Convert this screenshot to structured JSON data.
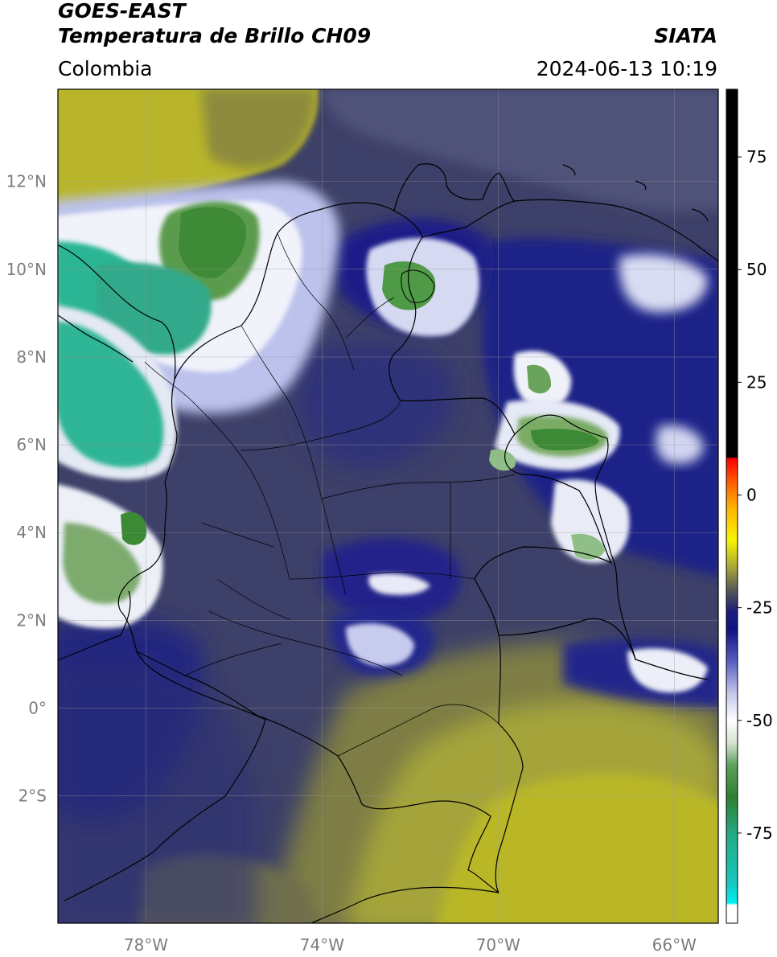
{
  "header": {
    "title_line1": "GOES-EAST",
    "title_line2": "Temperatura de Brillo CH09",
    "region": "Colombia",
    "brand": "SIATA",
    "timestamp": "2024-06-13 10:19"
  },
  "map": {
    "lon_range": [
      -80,
      -65
    ],
    "lat_range": [
      -4.9,
      14.1
    ],
    "lon_ticks": [
      {
        "value": -78,
        "label": "78°W"
      },
      {
        "value": -74,
        "label": "74°W"
      },
      {
        "value": -70,
        "label": "70°W"
      },
      {
        "value": -66,
        "label": "66°W"
      }
    ],
    "lat_ticks": [
      {
        "value": 12,
        "label": "12°N"
      },
      {
        "value": 10,
        "label": "10°N"
      },
      {
        "value": 8,
        "label": "8°N"
      },
      {
        "value": 6,
        "label": "6°N"
      },
      {
        "value": 4,
        "label": "4°N"
      },
      {
        "value": 2,
        "label": "2°N"
      },
      {
        "value": 0,
        "label": "0°"
      },
      {
        "value": -2,
        "label": "2°S"
      }
    ],
    "grid": true,
    "background_colors": {
      "warm": "#b9b624",
      "mid": "#3b3f6b",
      "deep": "#1c1e86"
    },
    "cloud_colors": {
      "white": "#f2f4fb",
      "lavender": "#aab0de",
      "green": "#3d8a36",
      "teal": "#2cc3a4"
    }
  },
  "colorbar": {
    "range": [
      -95,
      90
    ],
    "ticks": [
      {
        "value": 75,
        "label": "75"
      },
      {
        "value": 50,
        "label": "50"
      },
      {
        "value": 25,
        "label": "25"
      },
      {
        "value": 0,
        "label": "0"
      },
      {
        "value": -25,
        "label": "-25"
      },
      {
        "value": -50,
        "label": "-50"
      },
      {
        "value": -75,
        "label": "-75"
      }
    ],
    "stops": [
      {
        "value": -95,
        "color": "#ffffff"
      },
      {
        "value": -91,
        "color": "#ffffff"
      },
      {
        "value": -90.5,
        "color": "#00f0f0"
      },
      {
        "value": -86,
        "color": "#18c7c0"
      },
      {
        "value": -75,
        "color": "#24a983"
      },
      {
        "value": -67,
        "color": "#2f7f2f"
      },
      {
        "value": -60,
        "color": "#5ca15c"
      },
      {
        "value": -55,
        "color": "#d5e3d0"
      },
      {
        "value": -50,
        "color": "#ffffff"
      },
      {
        "value": -44,
        "color": "#c3c6ea"
      },
      {
        "value": -37,
        "color": "#5a5fc0"
      },
      {
        "value": -30,
        "color": "#101385"
      },
      {
        "value": -26,
        "color": "#1b1c7d"
      },
      {
        "value": -22,
        "color": "#4a4c5d"
      },
      {
        "value": -16,
        "color": "#a8a638"
      },
      {
        "value": -10,
        "color": "#f5f500"
      },
      {
        "value": -3,
        "color": "#ffb400"
      },
      {
        "value": 3,
        "color": "#ff5a00"
      },
      {
        "value": 8,
        "color": "#ff0000"
      },
      {
        "value": 8.5,
        "color": "#000000"
      },
      {
        "value": 90,
        "color": "#000000"
      }
    ]
  }
}
